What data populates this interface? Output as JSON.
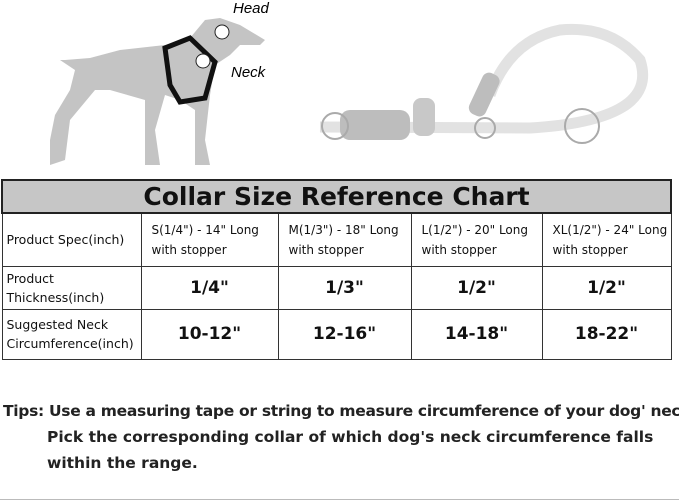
{
  "illustration": {
    "head_label": "Head",
    "neck_label": "Neck"
  },
  "chart": {
    "title": "Collar Size Reference Chart",
    "rows": [
      {
        "label": "Product Spec(inch)",
        "cells": [
          "S(1/4\") - 14\" Long with stopper",
          "M(1/3\") - 18\" Long with stopper",
          "L(1/2\") - 20\" Long with stopper",
          "XL(1/2\") - 24\" Long with stopper"
        ]
      },
      {
        "label": "Product Thickness(inch)",
        "cells": [
          "1/4\"",
          "1/3\"",
          "1/2\"",
          "1/2\""
        ]
      },
      {
        "label": "Suggested Neck Circumference(inch)",
        "cells": [
          "10-12\"",
          "12-16\"",
          "14-18\"",
          "18-22\""
        ]
      }
    ]
  },
  "tips": {
    "label": "Tips:",
    "line1": "Use a measuring tape or string to measure circumference of your dog' neck.",
    "line2": "Pick the corresponding collar of which dog's neck circumference falls",
    "line3": "within the range."
  }
}
